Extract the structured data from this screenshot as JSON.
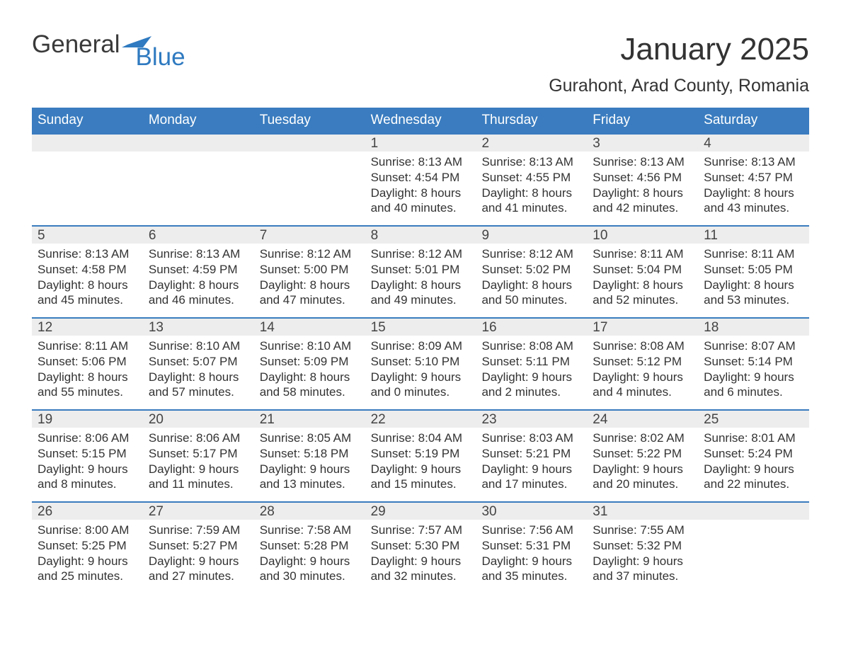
{
  "logo": {
    "word1": "General",
    "word2": "Blue",
    "accent_color": "#2f7ac0"
  },
  "title": "January 2025",
  "location": "Gurahont, Arad County, Romania",
  "days_of_week": [
    "Sunday",
    "Monday",
    "Tuesday",
    "Wednesday",
    "Thursday",
    "Friday",
    "Saturday"
  ],
  "colors": {
    "header_bg": "#3a7cbf",
    "header_fg": "#ffffff",
    "daynum_bg": "#ededed",
    "week_border": "#3a7cbf",
    "text": "#333333",
    "page_bg": "#ffffff"
  },
  "typography": {
    "title_fontsize": 44,
    "location_fontsize": 25,
    "dow_fontsize": 19,
    "daynum_fontsize": 19,
    "body_fontsize": 17
  },
  "weeks": [
    [
      null,
      null,
      null,
      {
        "n": "1",
        "sunrise": "Sunrise: 8:13 AM",
        "sunset": "Sunset: 4:54 PM",
        "dl1": "Daylight: 8 hours",
        "dl2": "and 40 minutes."
      },
      {
        "n": "2",
        "sunrise": "Sunrise: 8:13 AM",
        "sunset": "Sunset: 4:55 PM",
        "dl1": "Daylight: 8 hours",
        "dl2": "and 41 minutes."
      },
      {
        "n": "3",
        "sunrise": "Sunrise: 8:13 AM",
        "sunset": "Sunset: 4:56 PM",
        "dl1": "Daylight: 8 hours",
        "dl2": "and 42 minutes."
      },
      {
        "n": "4",
        "sunrise": "Sunrise: 8:13 AM",
        "sunset": "Sunset: 4:57 PM",
        "dl1": "Daylight: 8 hours",
        "dl2": "and 43 minutes."
      }
    ],
    [
      {
        "n": "5",
        "sunrise": "Sunrise: 8:13 AM",
        "sunset": "Sunset: 4:58 PM",
        "dl1": "Daylight: 8 hours",
        "dl2": "and 45 minutes."
      },
      {
        "n": "6",
        "sunrise": "Sunrise: 8:13 AM",
        "sunset": "Sunset: 4:59 PM",
        "dl1": "Daylight: 8 hours",
        "dl2": "and 46 minutes."
      },
      {
        "n": "7",
        "sunrise": "Sunrise: 8:12 AM",
        "sunset": "Sunset: 5:00 PM",
        "dl1": "Daylight: 8 hours",
        "dl2": "and 47 minutes."
      },
      {
        "n": "8",
        "sunrise": "Sunrise: 8:12 AM",
        "sunset": "Sunset: 5:01 PM",
        "dl1": "Daylight: 8 hours",
        "dl2": "and 49 minutes."
      },
      {
        "n": "9",
        "sunrise": "Sunrise: 8:12 AM",
        "sunset": "Sunset: 5:02 PM",
        "dl1": "Daylight: 8 hours",
        "dl2": "and 50 minutes."
      },
      {
        "n": "10",
        "sunrise": "Sunrise: 8:11 AM",
        "sunset": "Sunset: 5:04 PM",
        "dl1": "Daylight: 8 hours",
        "dl2": "and 52 minutes."
      },
      {
        "n": "11",
        "sunrise": "Sunrise: 8:11 AM",
        "sunset": "Sunset: 5:05 PM",
        "dl1": "Daylight: 8 hours",
        "dl2": "and 53 minutes."
      }
    ],
    [
      {
        "n": "12",
        "sunrise": "Sunrise: 8:11 AM",
        "sunset": "Sunset: 5:06 PM",
        "dl1": "Daylight: 8 hours",
        "dl2": "and 55 minutes."
      },
      {
        "n": "13",
        "sunrise": "Sunrise: 8:10 AM",
        "sunset": "Sunset: 5:07 PM",
        "dl1": "Daylight: 8 hours",
        "dl2": "and 57 minutes."
      },
      {
        "n": "14",
        "sunrise": "Sunrise: 8:10 AM",
        "sunset": "Sunset: 5:09 PM",
        "dl1": "Daylight: 8 hours",
        "dl2": "and 58 minutes."
      },
      {
        "n": "15",
        "sunrise": "Sunrise: 8:09 AM",
        "sunset": "Sunset: 5:10 PM",
        "dl1": "Daylight: 9 hours",
        "dl2": "and 0 minutes."
      },
      {
        "n": "16",
        "sunrise": "Sunrise: 8:08 AM",
        "sunset": "Sunset: 5:11 PM",
        "dl1": "Daylight: 9 hours",
        "dl2": "and 2 minutes."
      },
      {
        "n": "17",
        "sunrise": "Sunrise: 8:08 AM",
        "sunset": "Sunset: 5:12 PM",
        "dl1": "Daylight: 9 hours",
        "dl2": "and 4 minutes."
      },
      {
        "n": "18",
        "sunrise": "Sunrise: 8:07 AM",
        "sunset": "Sunset: 5:14 PM",
        "dl1": "Daylight: 9 hours",
        "dl2": "and 6 minutes."
      }
    ],
    [
      {
        "n": "19",
        "sunrise": "Sunrise: 8:06 AM",
        "sunset": "Sunset: 5:15 PM",
        "dl1": "Daylight: 9 hours",
        "dl2": "and 8 minutes."
      },
      {
        "n": "20",
        "sunrise": "Sunrise: 8:06 AM",
        "sunset": "Sunset: 5:17 PM",
        "dl1": "Daylight: 9 hours",
        "dl2": "and 11 minutes."
      },
      {
        "n": "21",
        "sunrise": "Sunrise: 8:05 AM",
        "sunset": "Sunset: 5:18 PM",
        "dl1": "Daylight: 9 hours",
        "dl2": "and 13 minutes."
      },
      {
        "n": "22",
        "sunrise": "Sunrise: 8:04 AM",
        "sunset": "Sunset: 5:19 PM",
        "dl1": "Daylight: 9 hours",
        "dl2": "and 15 minutes."
      },
      {
        "n": "23",
        "sunrise": "Sunrise: 8:03 AM",
        "sunset": "Sunset: 5:21 PM",
        "dl1": "Daylight: 9 hours",
        "dl2": "and 17 minutes."
      },
      {
        "n": "24",
        "sunrise": "Sunrise: 8:02 AM",
        "sunset": "Sunset: 5:22 PM",
        "dl1": "Daylight: 9 hours",
        "dl2": "and 20 minutes."
      },
      {
        "n": "25",
        "sunrise": "Sunrise: 8:01 AM",
        "sunset": "Sunset: 5:24 PM",
        "dl1": "Daylight: 9 hours",
        "dl2": "and 22 minutes."
      }
    ],
    [
      {
        "n": "26",
        "sunrise": "Sunrise: 8:00 AM",
        "sunset": "Sunset: 5:25 PM",
        "dl1": "Daylight: 9 hours",
        "dl2": "and 25 minutes."
      },
      {
        "n": "27",
        "sunrise": "Sunrise: 7:59 AM",
        "sunset": "Sunset: 5:27 PM",
        "dl1": "Daylight: 9 hours",
        "dl2": "and 27 minutes."
      },
      {
        "n": "28",
        "sunrise": "Sunrise: 7:58 AM",
        "sunset": "Sunset: 5:28 PM",
        "dl1": "Daylight: 9 hours",
        "dl2": "and 30 minutes."
      },
      {
        "n": "29",
        "sunrise": "Sunrise: 7:57 AM",
        "sunset": "Sunset: 5:30 PM",
        "dl1": "Daylight: 9 hours",
        "dl2": "and 32 minutes."
      },
      {
        "n": "30",
        "sunrise": "Sunrise: 7:56 AM",
        "sunset": "Sunset: 5:31 PM",
        "dl1": "Daylight: 9 hours",
        "dl2": "and 35 minutes."
      },
      {
        "n": "31",
        "sunrise": "Sunrise: 7:55 AM",
        "sunset": "Sunset: 5:32 PM",
        "dl1": "Daylight: 9 hours",
        "dl2": "and 37 minutes."
      },
      null
    ]
  ]
}
